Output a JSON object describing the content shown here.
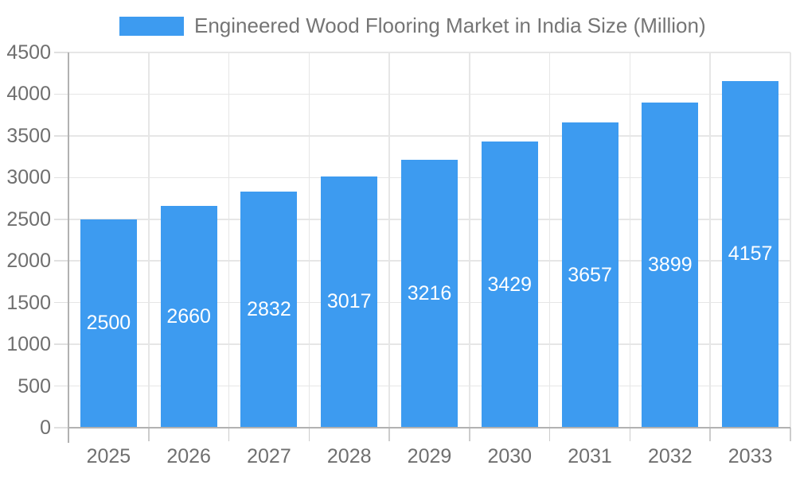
{
  "legend": {
    "label": "Engineered Wood Flooring Market in India Size (Million)",
    "position": "top"
  },
  "chart_data": {
    "type": "bar",
    "title": "Engineered Wood Flooring Market in India Size (Million)",
    "categories": [
      "2025",
      "2026",
      "2027",
      "2028",
      "2029",
      "2030",
      "2031",
      "2032",
      "2033"
    ],
    "values": [
      2500,
      2660,
      2832,
      3017,
      3216,
      3429,
      3657,
      3899,
      4157
    ],
    "value_labels_shown": true,
    "value_label_position": "inside-center",
    "xlabel": "",
    "ylabel": "",
    "ylim": [
      0,
      4500
    ],
    "yticks": [
      0,
      500,
      1000,
      1500,
      2000,
      2500,
      3000,
      3500,
      4000,
      4500
    ],
    "grid": "horizontal and vertical category boundaries",
    "legend_position": "top"
  },
  "colors": {
    "bar": "#3d9bf0",
    "gridline": "#e6e6e6",
    "axis_line": "#b2b2b2",
    "axis_label_text": "#6f6f6f",
    "legend_text": "#757575",
    "value_label_text": "#ffffff",
    "background": "#ffffff"
  }
}
